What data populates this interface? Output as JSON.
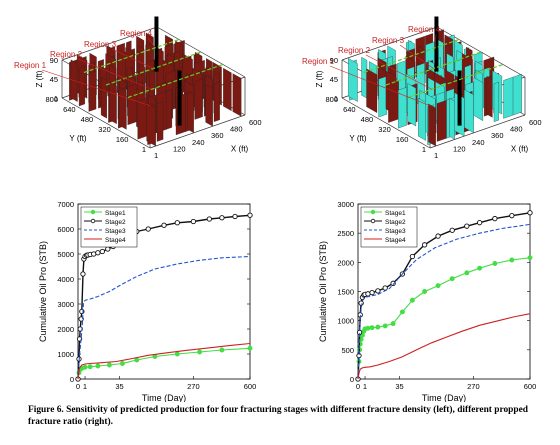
{
  "figures_3d": [
    {
      "id": "fracture-density",
      "regions": [
        "Region 1",
        "Region 2",
        "Region 3",
        "Region 4"
      ],
      "z_axis": {
        "label": "Z (ft)",
        "ticks": [
          "90",
          "45",
          "1"
        ]
      },
      "y_axis": {
        "label": "Y (ft)",
        "ticks": [
          "800",
          "640",
          "480",
          "320",
          "160",
          "1"
        ]
      },
      "x_axis": {
        "label": "X (ft)",
        "ticks": [
          "1",
          "120",
          "240",
          "360",
          "480",
          "600"
        ]
      },
      "colors": {
        "fracture": "#7a1a12",
        "well": "#000000",
        "region_line": "#66cc22",
        "region_label": "#cc2222"
      }
    },
    {
      "id": "propped-fracture-ratio",
      "regions": [
        "Region 1",
        "Region 2",
        "Region 3",
        "Region 4"
      ],
      "z_axis": {
        "label": "Z (ft)",
        "ticks": [
          "90",
          "45",
          "1"
        ]
      },
      "y_axis": {
        "label": "Y (ft)",
        "ticks": [
          "800",
          "640",
          "480",
          "320",
          "160",
          "1"
        ]
      },
      "x_axis": {
        "label": "X (ft)",
        "ticks": [
          "1",
          "120",
          "240",
          "360",
          "480",
          "600"
        ]
      },
      "colors": {
        "fracture": "#7a1a12",
        "propped": "#3fe0d0",
        "well": "#000000",
        "region_line": "#66cc22",
        "region_label": "#cc2222"
      }
    }
  ],
  "chart_data": [
    {
      "type": "line",
      "xlabel": "Time (Day)",
      "ylabel": "Cumulative Oil Pro (STB)",
      "xticks": [
        "0",
        "1",
        "35",
        "270",
        "600"
      ],
      "xtick_values": [
        0,
        1,
        35,
        270,
        600
      ],
      "x_scale": "sqrt",
      "ylim": [
        0,
        7000
      ],
      "yticks": [
        0,
        1000,
        2000,
        3000,
        4000,
        5000,
        6000,
        7000
      ],
      "legend_position": "top-left",
      "series": [
        {
          "name": "Stage1",
          "color": "#44dd44",
          "style": "solid-dots",
          "x": [
            0,
            0.02,
            0.1,
            0.3,
            1,
            3,
            8,
            20,
            40,
            70,
            120,
            200,
            300,
            420,
            600
          ],
          "y": [
            0,
            250,
            380,
            430,
            470,
            490,
            520,
            560,
            620,
            760,
            900,
            1000,
            1080,
            1160,
            1230
          ]
        },
        {
          "name": "Stage2",
          "color": "#111111",
          "style": "solid-circles",
          "x": [
            0,
            0.02,
            0.05,
            0.1,
            0.2,
            0.3,
            0.5,
            0.7,
            1,
            1.5,
            2,
            3,
            5,
            8,
            12,
            18,
            25,
            35,
            50,
            70,
            100,
            150,
            200,
            270,
            350,
            420,
            500,
            600
          ],
          "y": [
            0,
            800,
            1600,
            2000,
            2400,
            2700,
            4200,
            4800,
            4900,
            4950,
            4960,
            4980,
            5000,
            5050,
            5100,
            5200,
            5300,
            5400,
            5700,
            5900,
            6000,
            6150,
            6250,
            6300,
            6400,
            6450,
            6500,
            6550
          ]
        },
        {
          "name": "Stage3",
          "color": "#2255cc",
          "style": "dashed",
          "x": [
            0,
            0.05,
            0.2,
            0.4,
            0.6,
            1,
            3,
            8,
            20,
            40,
            70,
            120,
            200,
            300,
            420,
            600
          ],
          "y": [
            0,
            1000,
            1600,
            2200,
            3000,
            3150,
            3200,
            3300,
            3500,
            3800,
            4100,
            4400,
            4600,
            4750,
            4850,
            4900
          ]
        },
        {
          "name": "Stage4",
          "color": "#cc2222",
          "style": "solid",
          "x": [
            0,
            0.05,
            0.3,
            1,
            3,
            10,
            30,
            60,
            100,
            160,
            240,
            350,
            480,
            600
          ],
          "y": [
            0,
            450,
            560,
            600,
            620,
            650,
            700,
            820,
            950,
            1050,
            1150,
            1250,
            1350,
            1420
          ]
        }
      ]
    },
    {
      "type": "line",
      "xlabel": "Time (Day)",
      "ylabel": "Cumulative Oil Pro (STB)",
      "xticks": [
        "0",
        "1",
        "35",
        "270",
        "600"
      ],
      "xtick_values": [
        0,
        1,
        35,
        270,
        600
      ],
      "x_scale": "sqrt",
      "ylim": [
        0,
        3000
      ],
      "yticks": [
        0,
        500,
        1000,
        1500,
        2000,
        2500,
        3000
      ],
      "legend_position": "top-left",
      "series": [
        {
          "name": "Stage1",
          "color": "#44dd44",
          "style": "solid-dots",
          "x": [
            0,
            0.02,
            0.05,
            0.1,
            0.2,
            0.4,
            0.7,
            1,
            2,
            4,
            8,
            15,
            25,
            40,
            60,
            90,
            130,
            180,
            240,
            300,
            380,
            480,
            600
          ],
          "y": [
            0,
            300,
            500,
            600,
            680,
            750,
            820,
            860,
            870,
            880,
            890,
            910,
            950,
            1150,
            1350,
            1500,
            1600,
            1720,
            1820,
            1900,
            1980,
            2040,
            2080
          ]
        },
        {
          "name": "Stage2",
          "color": "#111111",
          "style": "solid-circles",
          "x": [
            0,
            0.02,
            0.05,
            0.1,
            0.2,
            0.4,
            0.7,
            1,
            2,
            4,
            8,
            15,
            25,
            40,
            60,
            90,
            130,
            180,
            240,
            300,
            380,
            480,
            600
          ],
          "y": [
            0,
            400,
            800,
            1100,
            1300,
            1400,
            1440,
            1450,
            1460,
            1480,
            1510,
            1560,
            1640,
            1800,
            2100,
            2300,
            2450,
            2550,
            2620,
            2680,
            2750,
            2800,
            2850
          ]
        },
        {
          "name": "Stage3",
          "color": "#2255cc",
          "style": "dashed",
          "x": [
            0,
            0.02,
            0.05,
            0.1,
            0.2,
            0.4,
            0.7,
            1,
            3,
            8,
            20,
            40,
            70,
            120,
            200,
            300,
            420,
            600
          ],
          "y": [
            0,
            380,
            750,
            1000,
            1200,
            1340,
            1380,
            1400,
            1420,
            1450,
            1550,
            1800,
            2050,
            2250,
            2400,
            2500,
            2580,
            2650
          ]
        },
        {
          "name": "Stage4",
          "color": "#cc2222",
          "style": "solid",
          "x": [
            0,
            0.02,
            0.1,
            0.4,
            1,
            3,
            8,
            20,
            40,
            70,
            110,
            160,
            220,
            300,
            400,
            500,
            600
          ],
          "y": [
            0,
            100,
            170,
            190,
            200,
            210,
            240,
            300,
            380,
            500,
            620,
            720,
            820,
            920,
            1000,
            1070,
            1120
          ]
        }
      ]
    }
  ],
  "caption": "Figure 6. Sensitivity of predicted production for four fracturing stages with different fracture density (left), different propped fracture ratio (right)."
}
